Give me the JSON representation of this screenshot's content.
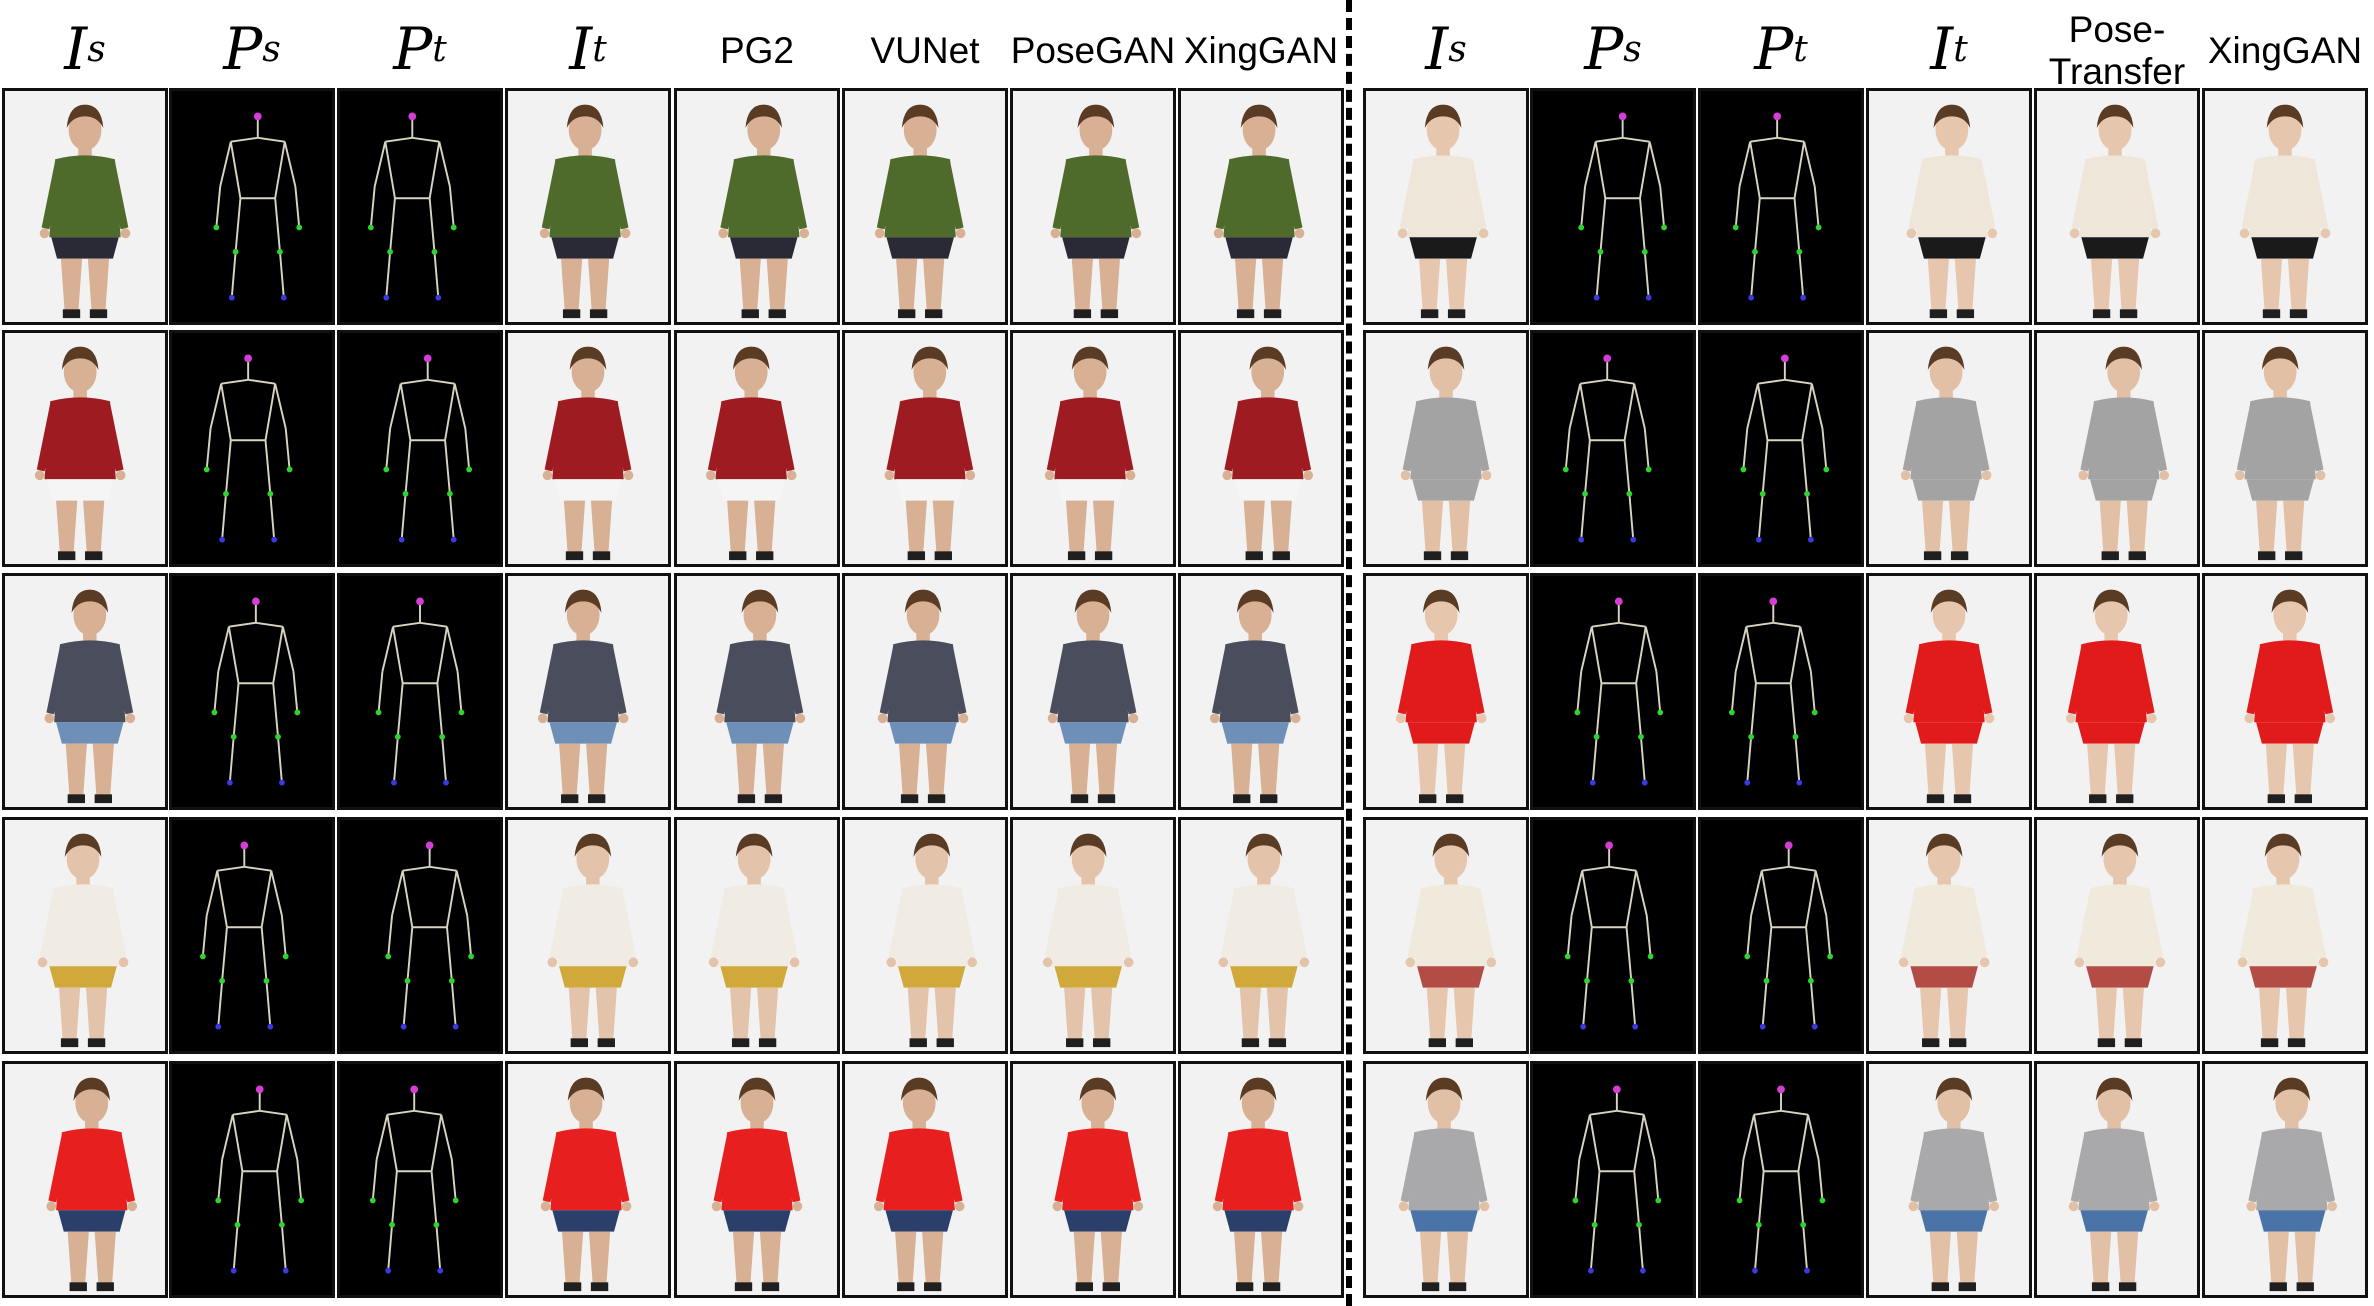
{
  "headers": {
    "left": [
      "I_s",
      "P_s",
      "P_t",
      "I_t",
      "PG2",
      "VUNet",
      "PoseGAN",
      "XingGAN"
    ],
    "right": [
      "I_s",
      "P_s",
      "P_t",
      "I_t",
      "Pose-\nTransfer",
      "XingGAN"
    ]
  },
  "math_headers": {
    "I_s": {
      "base": "I",
      "sub": "s"
    },
    "P_s": {
      "base": "P",
      "sub": "s"
    },
    "P_t": {
      "base": "P",
      "sub": "t"
    },
    "I_t": {
      "base": "I",
      "sub": "t"
    }
  },
  "colors": {
    "pose_bg": "#000000",
    "skeleton_line": "#d9d4bf",
    "joint_head": "#d63cd6",
    "joint_green": "#2fd42f",
    "joint_blue": "#3a3ae0",
    "photo_bg": "#f2f2f2"
  },
  "rows": [
    {
      "left": {
        "garment": "#4f6b2c",
        "pants": "#2a2a36",
        "skin": "#d8b094"
      },
      "right": {
        "garment": "#efe6da",
        "pants": "#1a1a1a",
        "skin": "#e6c6ad"
      }
    },
    {
      "left": {
        "garment": "#9e1b22",
        "pants": "#f5f5f5",
        "skin": "#d8b094"
      },
      "right": {
        "garment": "#a3a3a3",
        "pants": "#a3a3a3",
        "skin": "#e2c0a5"
      }
    },
    {
      "left": {
        "garment": "#4a4e5c",
        "pants": "#6d8fb8",
        "skin": "#d8b094"
      },
      "right": {
        "garment": "#e11b1b",
        "pants": "#e11b1b",
        "skin": "#e6c6ad"
      }
    },
    {
      "left": {
        "garment": "#f0ece4",
        "pants": "#d1a93a",
        "skin": "#e3c4aa"
      },
      "right": {
        "garment": "#f0eadc",
        "pants": "#b24c44",
        "skin": "#e6c6ad"
      }
    },
    {
      "left": {
        "garment": "#e81f1f",
        "pants": "#2b3f6b",
        "skin": "#d8b094"
      },
      "right": {
        "garment": "#a9a9ab",
        "pants": "#4a74a8",
        "skin": "#e2c0a5"
      }
    }
  ]
}
